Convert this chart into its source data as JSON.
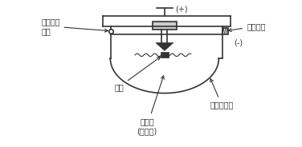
{
  "bg_color": "#ffffff",
  "line_color": "#333333",
  "fig_width": 3.76,
  "fig_height": 1.84,
  "dpi": 100,
  "labels": {
    "plus": "(+)",
    "minus": "(-)",
    "leak": "리크구멍",
    "actuator": "작동표시\n장치",
    "contact": "접점",
    "chamber": "감열실\n(공기실)",
    "diaphragm": "다이어프램"
  },
  "label_fontsize": 7.0
}
